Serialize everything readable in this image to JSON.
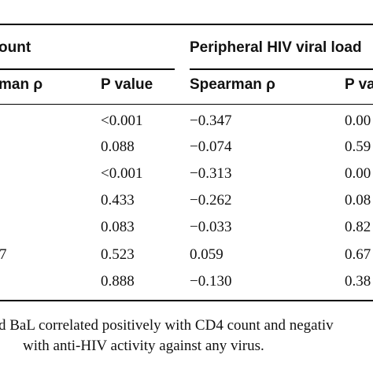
{
  "table": {
    "group_headers": {
      "left": "ount",
      "right": "Peripheral HIV viral load"
    },
    "column_headers": {
      "left_rho_partial": "man ρ",
      "p_value": "P value",
      "spearman_rho": "Spearman ρ",
      "p_value_right_partial": "P va"
    },
    "rows": [
      {
        "left_partial": "",
        "p_value": "<0.001",
        "spearman_rho": "−0.347",
        "p_value_right": "0.00"
      },
      {
        "left_partial": "",
        "p_value": "0.088",
        "spearman_rho": "−0.074",
        "p_value_right": "0.59"
      },
      {
        "left_partial": "",
        "p_value": "<0.001",
        "spearman_rho": "−0.313",
        "p_value_right": "0.00"
      },
      {
        "left_partial": "",
        "p_value": "0.433",
        "spearman_rho": "−0.262",
        "p_value_right": "0.08"
      },
      {
        "left_partial": "",
        "p_value": "0.083",
        "spearman_rho": "−0.033",
        "p_value_right": "0.82"
      },
      {
        "left_partial": "7",
        "p_value": "0.523",
        "spearman_rho": "0.059",
        "p_value_right": "0.67"
      },
      {
        "left_partial": "",
        "p_value": "0.888",
        "spearman_rho": "−0.130",
        "p_value_right": "0.38"
      }
    ]
  },
  "footnote": {
    "line1": "d BaL correlated positively with CD4 count and negativ",
    "line2": "with anti-HIV activity against any virus."
  }
}
